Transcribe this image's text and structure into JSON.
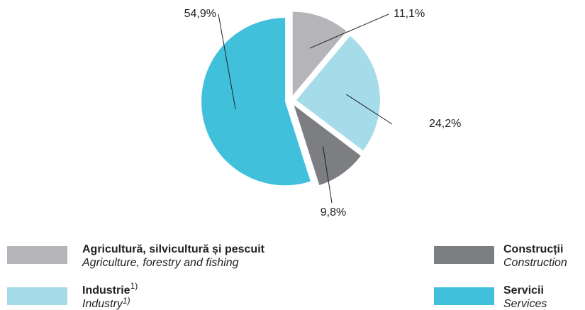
{
  "chart_data": {
    "type": "pie",
    "categories": [
      "Agricultură, silvicultură și pescuit",
      "Industrie",
      "Construcții",
      "Servicii"
    ],
    "categories_en": [
      "Agriculture, forestry and fishing",
      "Industry",
      "Construction",
      "Services"
    ],
    "category_notes": [
      null,
      "1)",
      null,
      null
    ],
    "values": [
      11.1,
      24.2,
      9.8,
      54.9
    ],
    "value_labels": [
      "11,1%",
      "24,2%",
      "9,8%",
      "54,9%"
    ],
    "colors": [
      "#b5b5b9",
      "#a6dcea",
      "#7d7e82",
      "#40c0da"
    ]
  }
}
